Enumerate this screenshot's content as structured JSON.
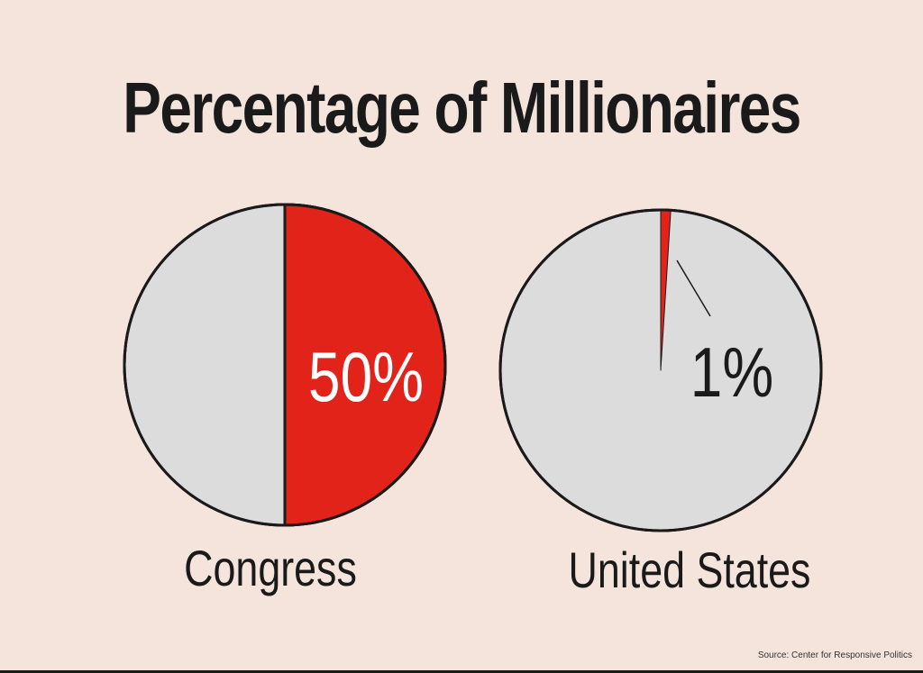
{
  "chart_data": [
    {
      "type": "pie",
      "title": "Percentage of Millionaires",
      "label": "Congress",
      "value_label": "50%",
      "values": [
        50,
        50
      ],
      "colors": {
        "highlight": "#e2231a",
        "rest": "#dcdcdc",
        "stroke": "#1a1a1a"
      }
    },
    {
      "type": "pie",
      "label": "United States",
      "value_label": "1%",
      "values": [
        1,
        99
      ],
      "colors": {
        "highlight": "#e2231a",
        "rest": "#dcdcdc",
        "stroke": "#1a1a1a"
      }
    }
  ],
  "source": "Source: Center for Responsive Politics"
}
